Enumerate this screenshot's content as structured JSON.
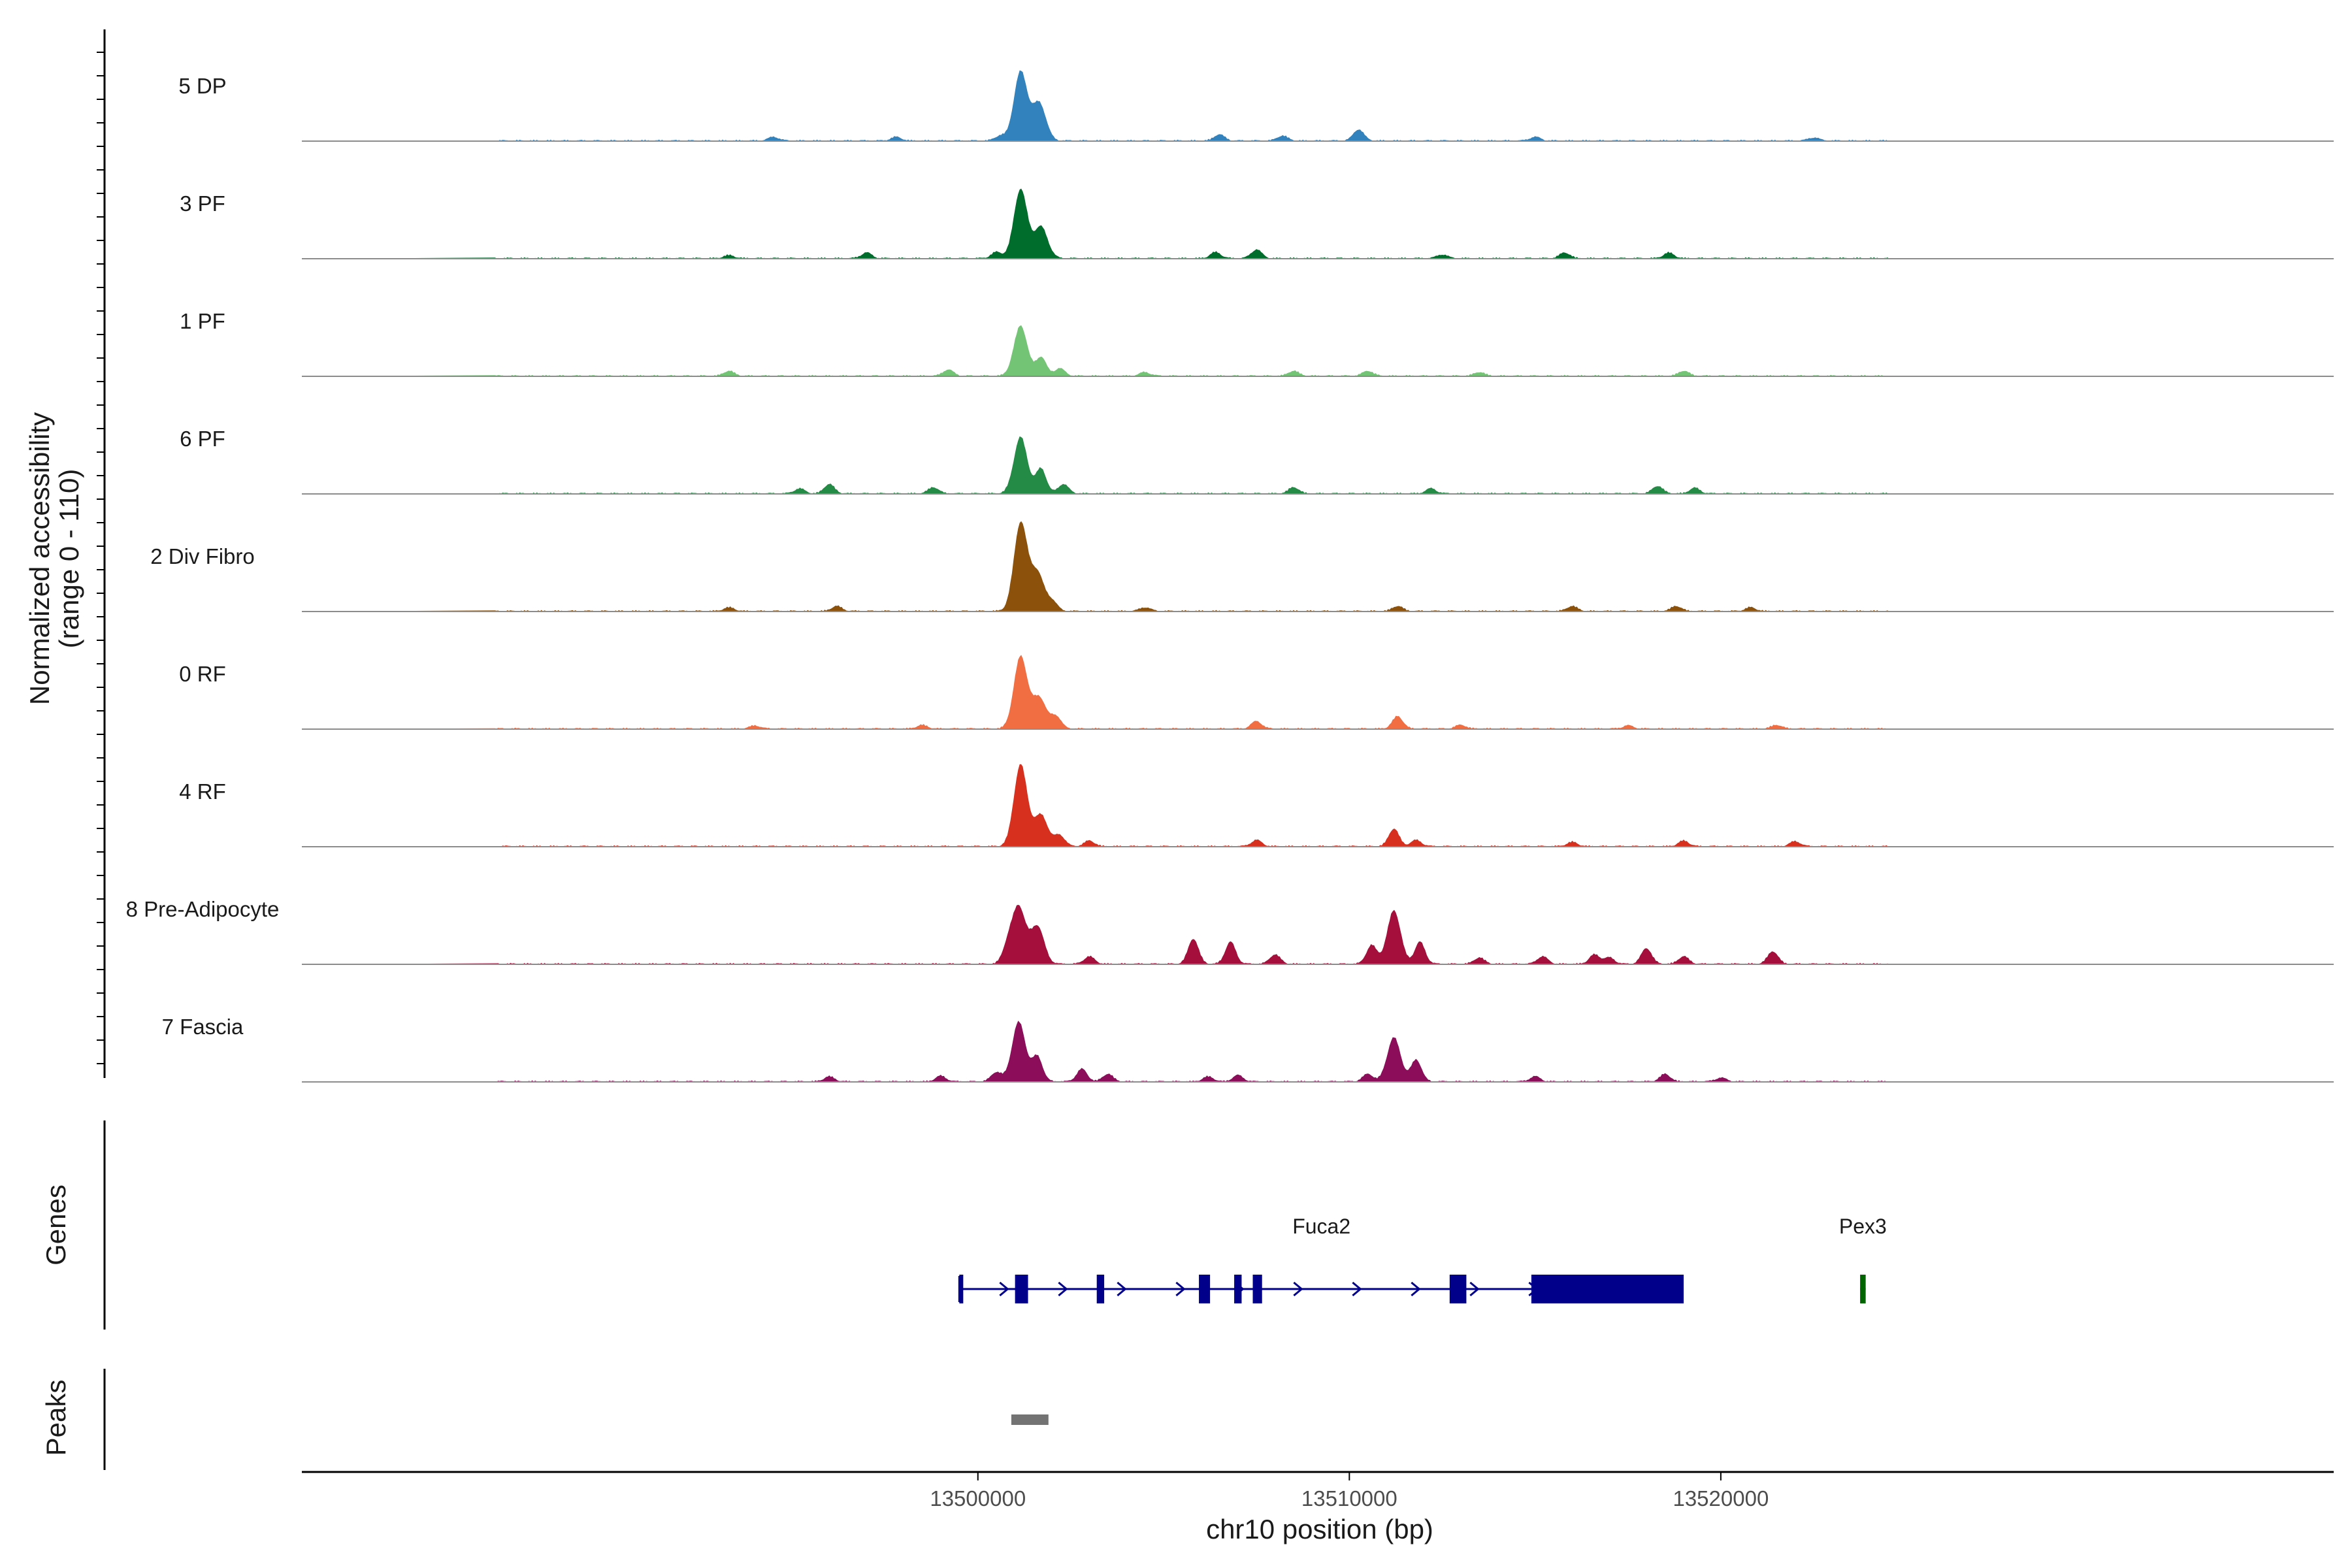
{
  "chart_data": {
    "type": "area",
    "title": "",
    "xlabel": "chr10 position (bp)",
    "ylabel": "Normalized accessibility",
    "ylabel_range": "(range 0 - 110)",
    "xlim": [
      13481800,
      13536500
    ],
    "ylim": [
      0,
      110
    ],
    "x_ticks": [
      13500000,
      13510000,
      13520000
    ],
    "x_tick_labels": [
      "13500000",
      "13510000",
      "13520000"
    ],
    "tracks": [
      {
        "name": "5 DP",
        "color": "#3182BD",
        "peaks": [
          [
            13501150,
            110
          ],
          [
            13501650,
            60
          ],
          [
            13500600,
            8
          ],
          [
            13510250,
            18
          ],
          [
            13506500,
            10
          ],
          [
            13494500,
            6
          ],
          [
            13508200,
            8
          ],
          [
            13522500,
            5
          ],
          [
            13497800,
            6
          ],
          [
            13515000,
            6
          ]
        ]
      },
      {
        "name": "3 PF",
        "color": "#006D2C",
        "peaks": [
          [
            13501150,
            110
          ],
          [
            13501700,
            50
          ],
          [
            13500500,
            10
          ],
          [
            13506400,
            10
          ],
          [
            13507500,
            14
          ],
          [
            13497000,
            9
          ],
          [
            13518600,
            9
          ],
          [
            13515800,
            9
          ],
          [
            13512500,
            6
          ],
          [
            13493300,
            5
          ]
        ]
      },
      {
        "name": "1 PF",
        "color": "#74C476",
        "peaks": [
          [
            13501150,
            80
          ],
          [
            13501700,
            30
          ],
          [
            13502200,
            12
          ],
          [
            13499200,
            10
          ],
          [
            13493300,
            8
          ],
          [
            13508500,
            8
          ],
          [
            13519000,
            8
          ],
          [
            13510500,
            8
          ],
          [
            13513500,
            6
          ],
          [
            13504500,
            6
          ]
        ]
      },
      {
        "name": "6 PF",
        "color": "#238B45",
        "peaks": [
          [
            13501150,
            90
          ],
          [
            13501700,
            40
          ],
          [
            13502300,
            15
          ],
          [
            13496000,
            15
          ],
          [
            13498800,
            10
          ],
          [
            13508500,
            10
          ],
          [
            13518300,
            12
          ],
          [
            13519300,
            9
          ],
          [
            13512200,
            8
          ],
          [
            13495200,
            8
          ]
        ]
      },
      {
        "name": "2 Div Fibro",
        "color": "#8C510A",
        "peaks": [
          [
            13501150,
            140
          ],
          [
            13501600,
            60
          ],
          [
            13502000,
            15
          ],
          [
            13496200,
            8
          ],
          [
            13511300,
            8
          ],
          [
            13516000,
            8
          ],
          [
            13518800,
            8
          ],
          [
            13504500,
            6
          ],
          [
            13493300,
            6
          ],
          [
            13520800,
            6
          ]
        ]
      },
      {
        "name": "0 RF",
        "color": "#F16E43",
        "peaks": [
          [
            13501150,
            115
          ],
          [
            13501650,
            50
          ],
          [
            13502100,
            20
          ],
          [
            13507500,
            12
          ],
          [
            13511300,
            20
          ],
          [
            13498500,
            6
          ],
          [
            13513000,
            6
          ],
          [
            13517500,
            5
          ],
          [
            13521500,
            6
          ],
          [
            13494000,
            5
          ]
        ]
      },
      {
        "name": "4 RF",
        "color": "#D7301F",
        "peaks": [
          [
            13501150,
            130
          ],
          [
            13501700,
            50
          ],
          [
            13502200,
            18
          ],
          [
            13507500,
            10
          ],
          [
            13511200,
            28
          ],
          [
            13511800,
            10
          ],
          [
            13503000,
            9
          ],
          [
            13519000,
            9
          ],
          [
            13522000,
            8
          ],
          [
            13516000,
            7
          ]
        ]
      },
      {
        "name": "8 Pre-Adipocyte",
        "color": "#A50F3B",
        "peaks": [
          [
            13501100,
            90
          ],
          [
            13501600,
            60
          ],
          [
            13500800,
            25
          ],
          [
            13505800,
            40
          ],
          [
            13506800,
            35
          ],
          [
            13511200,
            85
          ],
          [
            13510600,
            30
          ],
          [
            13511900,
            35
          ],
          [
            13508000,
            15
          ],
          [
            13518000,
            25
          ],
          [
            13521400,
            20
          ],
          [
            13503000,
            12
          ],
          [
            13516600,
            15
          ],
          [
            13515200,
            12
          ],
          [
            13519000,
            12
          ],
          [
            13513500,
            10
          ],
          [
            13517000,
            10
          ]
        ]
      },
      {
        "name": "7 Fascia",
        "color": "#8C0E5A",
        "peaks": [
          [
            13501100,
            95
          ],
          [
            13501600,
            40
          ],
          [
            13500500,
            15
          ],
          [
            13502800,
            20
          ],
          [
            13503500,
            12
          ],
          [
            13511200,
            70
          ],
          [
            13511800,
            35
          ],
          [
            13510500,
            12
          ],
          [
            13507000,
            10
          ],
          [
            13499000,
            9
          ],
          [
            13496000,
            8
          ],
          [
            13518500,
            12
          ],
          [
            13515000,
            8
          ],
          [
            13506200,
            8
          ],
          [
            13520000,
            6
          ]
        ]
      }
    ],
    "genes": [
      {
        "name": "Fuca2",
        "strand": "+",
        "color": "#00008B",
        "start": 13499500,
        "end": 13519000,
        "exons": [
          [
            13499500,
            13499600
          ],
          [
            13501000,
            13501350
          ],
          [
            13503200,
            13503400
          ],
          [
            13505950,
            13506250
          ],
          [
            13506900,
            13507100
          ],
          [
            13507400,
            13507650
          ],
          [
            13512700,
            13513150
          ],
          [
            13514900,
            13519000
          ]
        ]
      },
      {
        "name": "Pex3",
        "strand": "-",
        "color": "#006400",
        "start": 13523750,
        "end": 13523900,
        "exons": [
          [
            13523750,
            13523900
          ]
        ]
      }
    ],
    "peaks_track": [
      [
        13500900,
        13501900
      ]
    ],
    "peaks_color": "#737373",
    "panel_labels": {
      "genes": "Genes",
      "peaks": "Peaks"
    }
  }
}
